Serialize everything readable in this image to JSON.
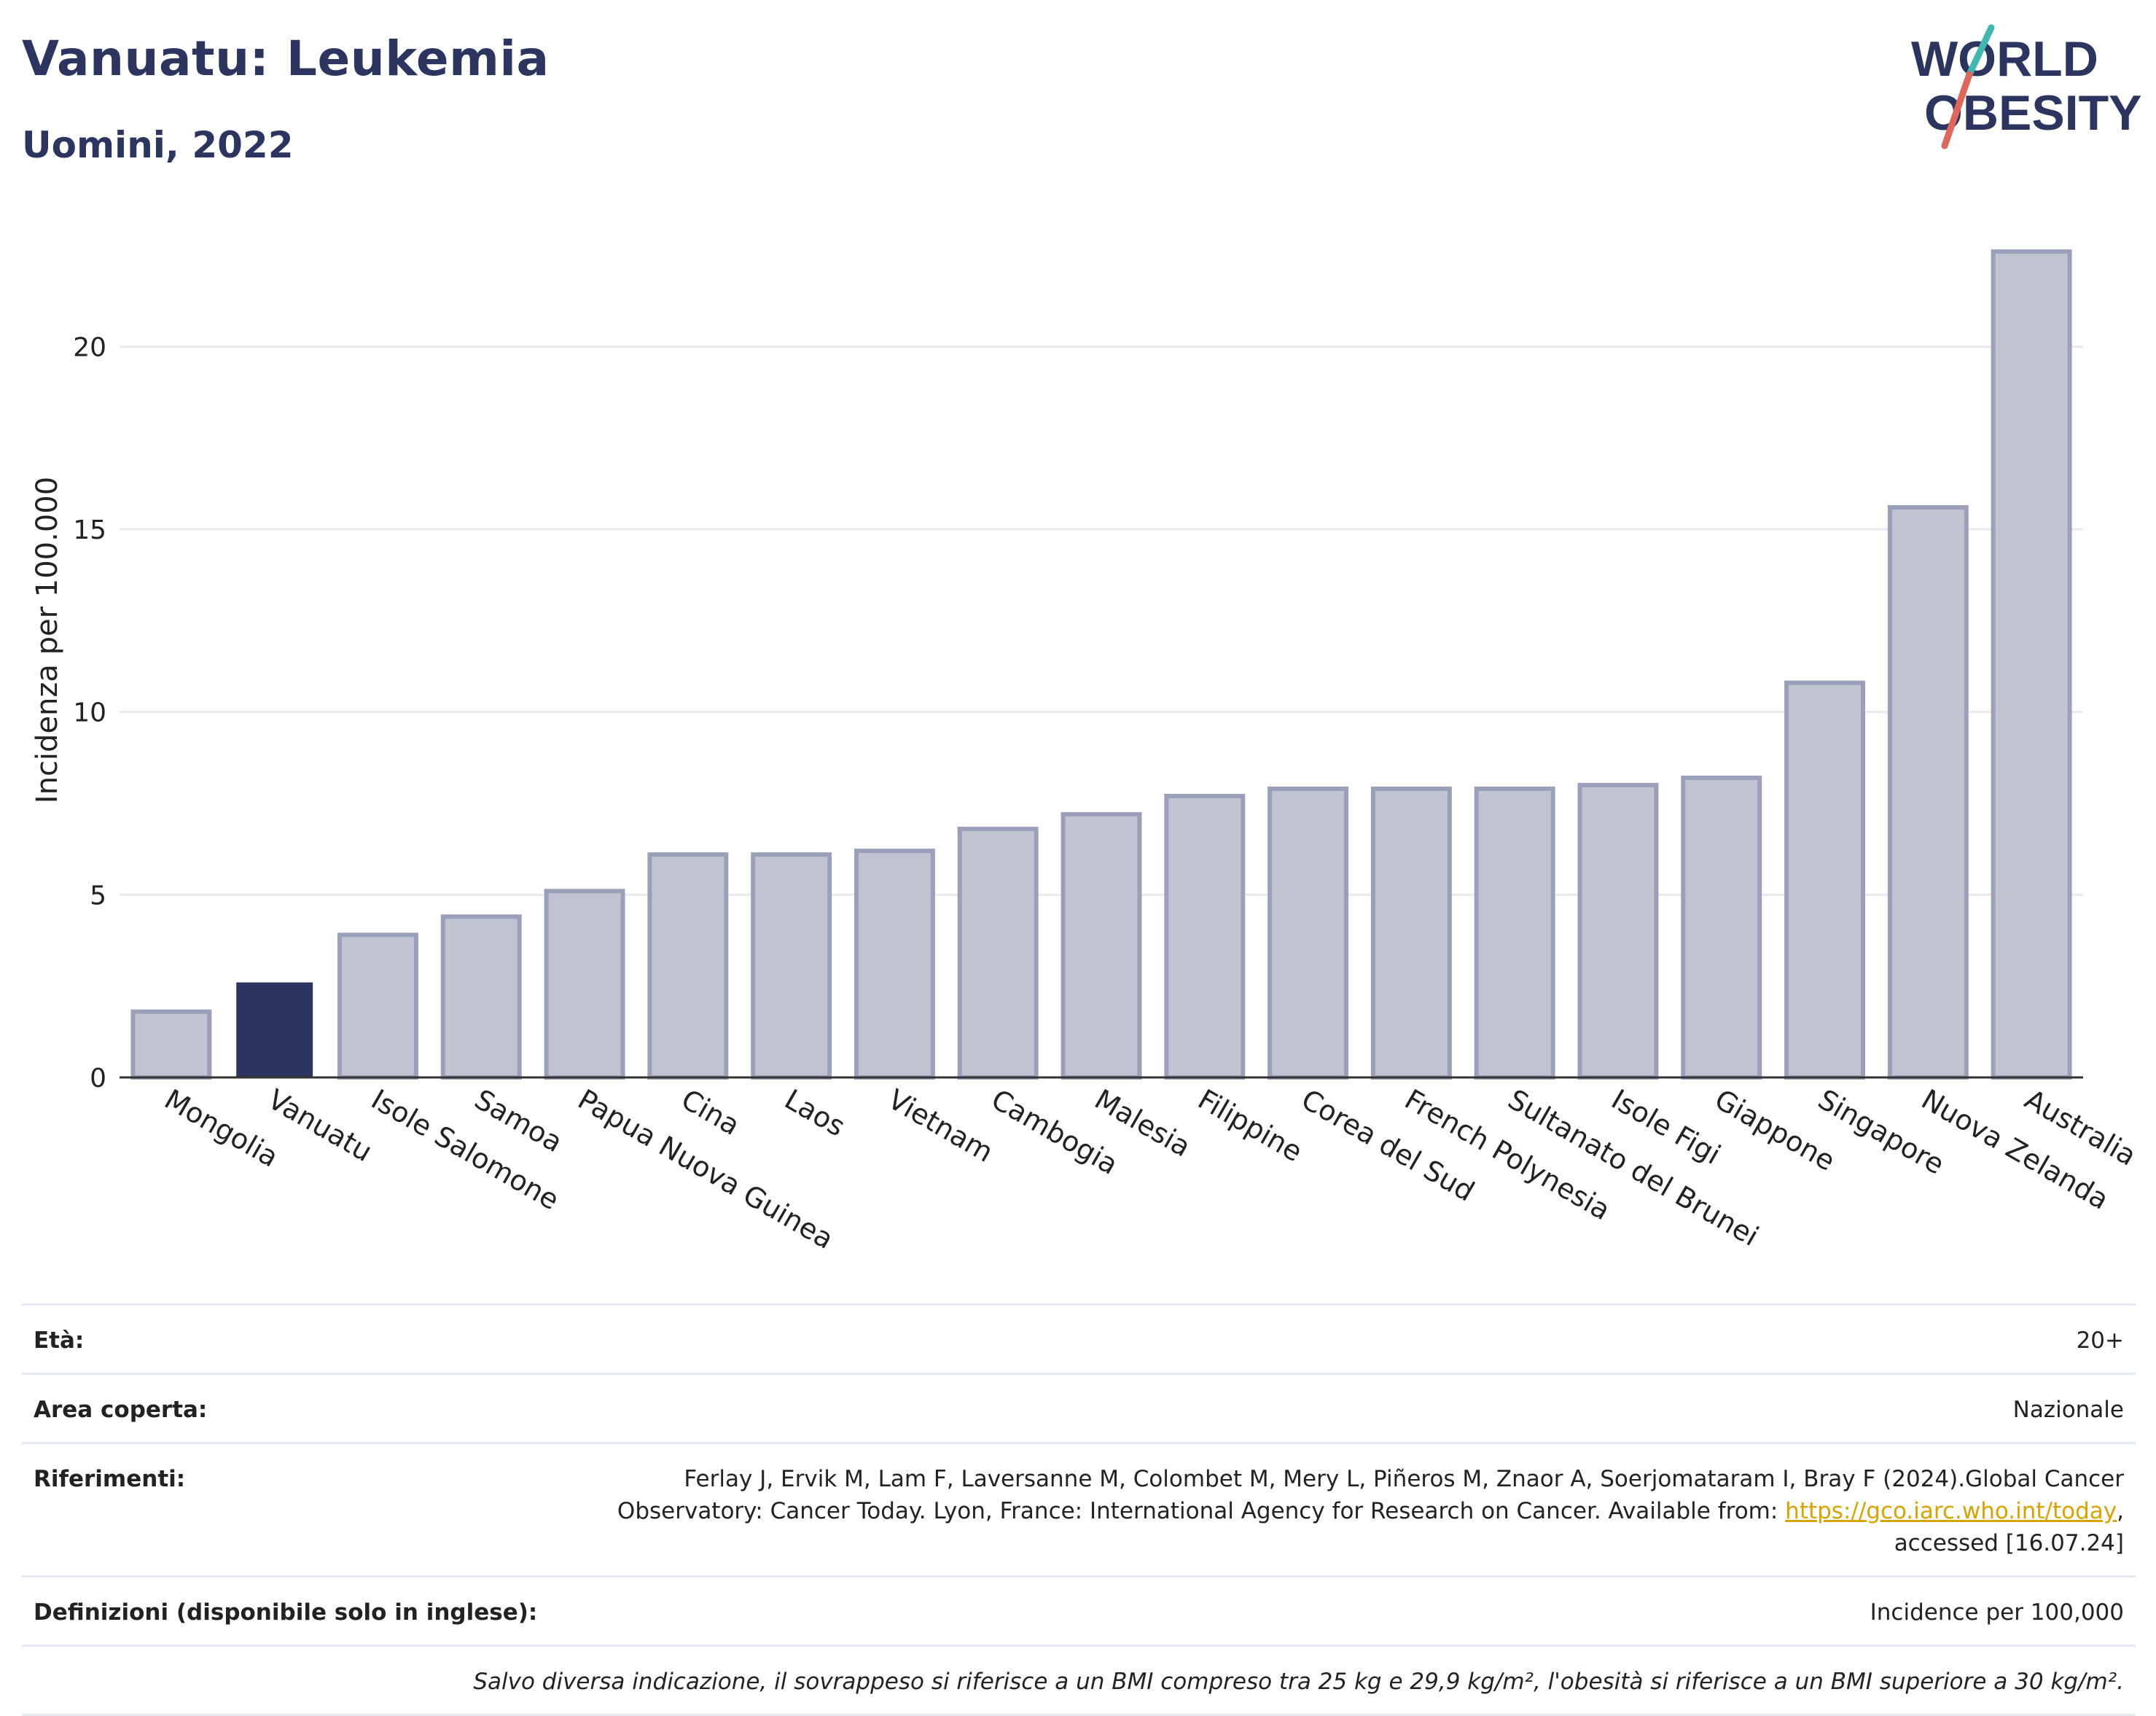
{
  "header": {
    "title": "Vanuatu: Leukemia",
    "subtitle": "Uomini, 2022"
  },
  "logo": {
    "line1": "WORLD",
    "line2": "OBESITY",
    "colors": {
      "text": "#2c3560",
      "slash_teal": "#3fb8b0",
      "slash_red": "#e0665a"
    }
  },
  "chart_data": {
    "type": "bar",
    "ylabel": "Incidenza per 100.000",
    "xlabel": "",
    "ylim": [
      0,
      23.5
    ],
    "yticks": [
      0,
      5,
      10,
      15,
      20
    ],
    "grid": true,
    "highlight": "Vanuatu",
    "colors": {
      "bar": "#c0c4d1",
      "bar_edge": "#9aa0ba",
      "highlight": "#2c3560"
    },
    "categories": [
      "Mongolia",
      "Vanuatu",
      "Isole Salomone",
      "Samoa",
      "Papua Nuova Guinea",
      "Cina",
      "Laos",
      "Vietnam",
      "Cambogia",
      "Malesia",
      "Filippine",
      "Corea del Sud",
      "French Polynesia",
      "Sultanato del Brunei",
      "Isole Figi",
      "Giappone",
      "Singapore",
      "Nuova Zelanda",
      "Australia"
    ],
    "values": [
      1.8,
      2.6,
      3.9,
      4.4,
      5.1,
      6.1,
      6.1,
      6.2,
      6.8,
      7.2,
      7.7,
      7.9,
      7.9,
      7.9,
      8.0,
      8.2,
      10.8,
      15.6,
      22.6
    ]
  },
  "info": {
    "rows": [
      {
        "key": "Età:",
        "value": "20+"
      },
      {
        "key": "Area coperta:",
        "value": "Nazionale"
      },
      {
        "key": "Riferimenti:",
        "value_before": "Ferlay J, Ervik M, Lam F, Laversanne M, Colombet M, Mery L, Piñeros M, Znaor A, Soerjomataram I, Bray F (2024).Global Cancer Observatory: Cancer Today. Lyon, France: International Agency for Research on Cancer. Available from: ",
        "link": "https://gco.iarc.who.int/today",
        "value_after": ", accessed [16.07.24]"
      },
      {
        "key": "Definizioni (disponibile solo in inglese):",
        "value": "Incidence per 100,000"
      }
    ],
    "note": "Salvo diversa indicazione, il sovrappeso si riferisce a un BMI compreso tra 25 kg e 29,9 kg/m², l'obesità si riferisce a un BMI superiore a 30 kg/m²."
  }
}
